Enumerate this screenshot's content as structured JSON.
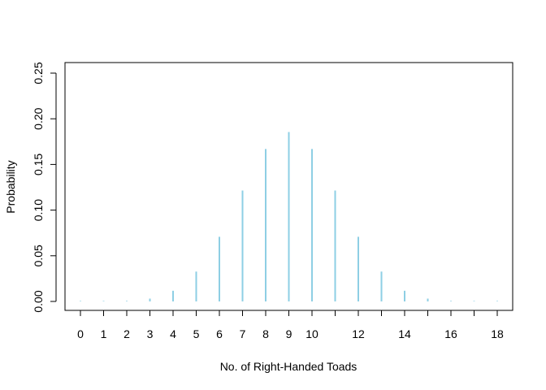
{
  "chart_data": {
    "type": "bar",
    "title": "",
    "xlabel": "No. of Right-Handed Toads",
    "ylabel": "Probability",
    "x": [
      0,
      1,
      2,
      3,
      4,
      5,
      6,
      7,
      8,
      9,
      10,
      11,
      12,
      13,
      14,
      15,
      16,
      17,
      18
    ],
    "values": [
      4e-06,
      7e-05,
      0.0006,
      0.0031,
      0.0117,
      0.0327,
      0.0708,
      0.1214,
      0.1669,
      0.1855,
      0.1669,
      0.1214,
      0.0708,
      0.0327,
      0.0117,
      0.0031,
      0.0006,
      7e-05,
      4e-06
    ],
    "xtick_labels": [
      "0",
      "1",
      "2",
      "3",
      "4",
      "5",
      "6",
      "7",
      "8",
      "9",
      "10",
      "12",
      "14",
      "16",
      "18"
    ],
    "xtick_positions": [
      0,
      1,
      2,
      3,
      4,
      5,
      6,
      7,
      8,
      9,
      10,
      12,
      14,
      16,
      18
    ],
    "yticks": [
      "0.00",
      "0.05",
      "0.10",
      "0.15",
      "0.20",
      "0.25"
    ],
    "ylim": [
      0,
      0.25
    ],
    "bar_color": "#8ecfe4",
    "grid": false,
    "legend": "none"
  }
}
